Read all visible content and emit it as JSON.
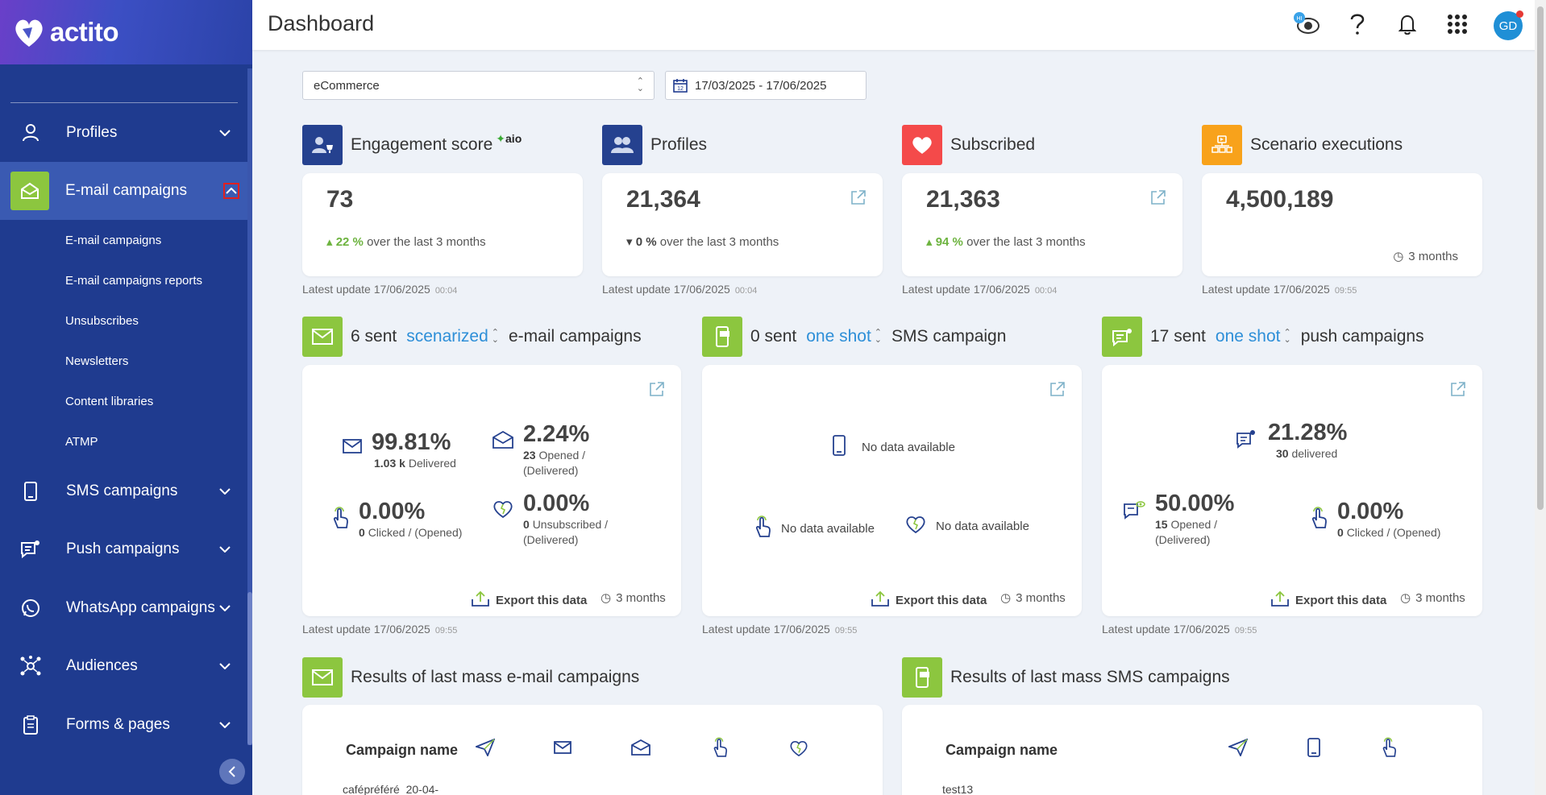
{
  "brand": {
    "name": "actito"
  },
  "sidebar": {
    "items": [
      {
        "label": "Profiles"
      },
      {
        "label": "E-mail campaigns"
      },
      {
        "label": "SMS campaigns"
      },
      {
        "label": "Push campaigns"
      },
      {
        "label": "WhatsApp campaigns"
      },
      {
        "label": "Audiences"
      },
      {
        "label": "Forms & pages"
      }
    ],
    "subitems": [
      "E-mail campaigns",
      "E-mail campaigns reports",
      "Unsubscribes",
      "Newsletters",
      "Content libraries",
      "ATMP"
    ]
  },
  "header": {
    "title": "Dashboard",
    "avatar_initials": "GD",
    "hi_badge": "HI"
  },
  "filters": {
    "scope": "eCommerce",
    "date_range": "17/03/2025 - 17/06/2025"
  },
  "kpis": [
    {
      "title": "Engagement score",
      "badge": "aio",
      "value": "73",
      "trend": "22 %",
      "trend_text": "over the last 3 months",
      "latest": "Latest update 17/06/2025",
      "time": "00:04"
    },
    {
      "title": "Profiles",
      "value": "21,364",
      "trend": "0 %",
      "trend_text": "over the last 3 months",
      "latest": "Latest update 17/06/2025",
      "time": "00:04"
    },
    {
      "title": "Subscribed",
      "value": "21,363",
      "trend": "94 %",
      "trend_text": "over the last 3 months",
      "latest": "Latest update 17/06/2025",
      "time": "00:04"
    },
    {
      "title": "Scenario executions",
      "value": "4,500,189",
      "period": "3 months",
      "latest": "Latest update 17/06/2025",
      "time": "09:55"
    }
  ],
  "campaigns": {
    "email": {
      "count": "6 sent",
      "mode": "scenarized",
      "suffix": "e-mail campaigns",
      "delivered_pct": "99.81%",
      "delivered_count": "1.03 k",
      "delivered_label": "Delivered",
      "opened_pct": "2.24%",
      "opened_count": "23",
      "opened_label": "Opened / (Delivered)",
      "clicked_pct": "0.00%",
      "clicked_count": "0",
      "clicked_label": "Clicked / (Opened)",
      "unsub_pct": "0.00%",
      "unsub_count": "0",
      "unsub_label": "Unsubscribed / (Delivered)",
      "export": "Export this data",
      "period": "3 months",
      "latest": "Latest update 17/06/2025",
      "time": "09:55"
    },
    "sms": {
      "count": "0 sent",
      "mode": "one shot",
      "suffix": "SMS campaign",
      "no_data": "No data available",
      "export": "Export this data",
      "period": "3 months",
      "latest": "Latest update 17/06/2025",
      "time": "09:55"
    },
    "push": {
      "count": "17 sent",
      "mode": "one shot",
      "suffix": "push campaigns",
      "delivered_pct": "21.28%",
      "delivered_count": "30",
      "delivered_label": "delivered",
      "opened_pct": "50.00%",
      "opened_count": "15",
      "opened_label": "Opened / (Delivered)",
      "clicked_pct": "0.00%",
      "clicked_count": "0",
      "clicked_label": "Clicked / (Opened)",
      "export": "Export this data",
      "period": "3 months",
      "latest": "Latest update 17/06/2025",
      "time": "09:55"
    }
  },
  "results": {
    "email": {
      "title": "Results of last mass e-mail campaigns",
      "col_name": "Campaign name",
      "first_row": "cafépréféré_20-04-"
    },
    "sms": {
      "title": "Results of last mass SMS campaigns",
      "col_name": "Campaign name",
      "first_row": "test13"
    }
  },
  "colors": {
    "sidebar": "#1f3b8f",
    "accent_green": "#8cc63f",
    "link_blue": "#2e8fd8",
    "kpi_navy": "#25418f",
    "kpi_red": "#f44a4a",
    "kpi_orange": "#f8a21b"
  }
}
